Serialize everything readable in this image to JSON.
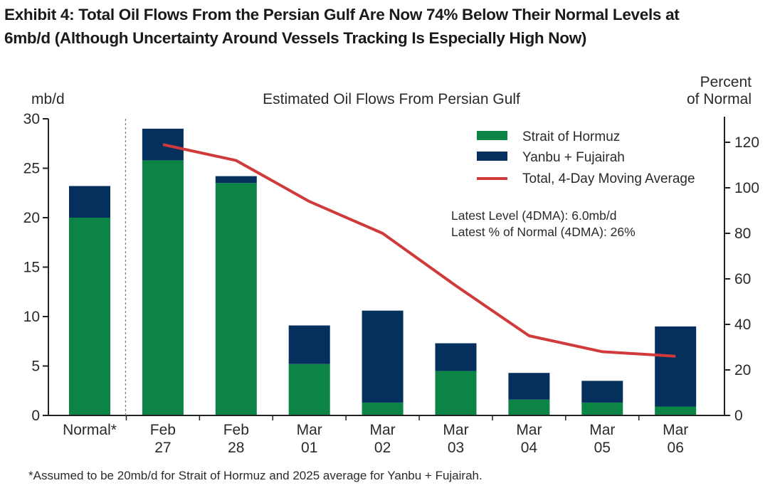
{
  "title": {
    "line1": "Exhibit 4:  Total Oil Flows From the Persian Gulf Are Now 74% Below Their Normal Levels at",
    "line2": "6mb/d (Although Uncertainty Around Vessels Tracking Is Especially High Now)"
  },
  "chart_data": {
    "type": "bar",
    "stacked": true,
    "title": "Estimated Oil Flows From Persian Gulf",
    "ylabel": "mb/d",
    "y2label": [
      "Percent",
      "of Normal"
    ],
    "ylim": [
      0,
      30
    ],
    "yticks": [
      0,
      5,
      10,
      15,
      20,
      25,
      30
    ],
    "y2lim": [
      0,
      130
    ],
    "y2ticks": [
      0,
      20,
      40,
      60,
      80,
      100,
      120
    ],
    "categories": [
      [
        "Normal*"
      ],
      [
        "Feb",
        "27"
      ],
      [
        "Feb",
        "28"
      ],
      [
        "Mar",
        "01"
      ],
      [
        "Mar",
        "02"
      ],
      [
        "Mar",
        "03"
      ],
      [
        "Mar",
        "04"
      ],
      [
        "Mar",
        "05"
      ],
      [
        "Mar",
        "06"
      ]
    ],
    "separator_after_index": 0,
    "series": [
      {
        "name": "Strait of Hormuz",
        "type": "bar",
        "axis": "left",
        "color": "#0b8446",
        "values": [
          20.0,
          25.8,
          23.5,
          5.2,
          1.3,
          4.5,
          1.6,
          1.3,
          0.9
        ]
      },
      {
        "name": "Yanbu + Fujairah",
        "type": "bar",
        "axis": "left",
        "color": "#05305e",
        "values": [
          3.2,
          3.2,
          0.7,
          3.9,
          9.3,
          2.8,
          2.7,
          2.2,
          8.1
        ]
      },
      {
        "name": "Total, 4-Day Moving Average",
        "type": "line",
        "axis": "right",
        "color": "#d03a3a",
        "values": [
          null,
          119,
          112,
          94,
          80,
          57,
          35,
          28,
          26
        ]
      }
    ],
    "legend_position": "top-right",
    "annotations": [
      "Latest Level (4DMA): 6.0mb/d",
      "Latest % of Normal (4DMA): 26%"
    ],
    "grid": false
  },
  "footnote": "*Assumed to be 20mb/d for Strait of Hormuz and 2025 average for Yanbu + Fujairah."
}
